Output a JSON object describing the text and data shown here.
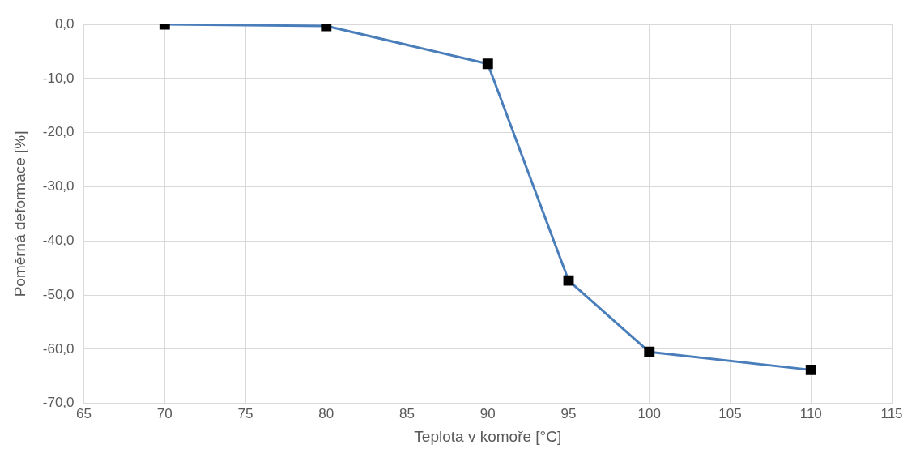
{
  "chart_data": {
    "type": "line",
    "xlabel": "Teplota v komoře [°C]",
    "ylabel": "Poměrná deformace [%]",
    "x": [
      70,
      80,
      90,
      95,
      100,
      110
    ],
    "series": [
      {
        "color": "#4a7ebb",
        "values": [
          0,
          -0.3,
          -7.3,
          -47.3,
          -60.5,
          -63.8
        ]
      }
    ],
    "xlim": [
      65,
      115
    ],
    "xticks": [
      65,
      70,
      75,
      80,
      85,
      90,
      95,
      100,
      105,
      110,
      115
    ],
    "ylim": [
      -70,
      0
    ],
    "yticks": [
      {
        "value": 0,
        "label": "0,0"
      },
      {
        "value": -10,
        "label": "-10,0"
      },
      {
        "value": -20,
        "label": "-20,0"
      },
      {
        "value": -30,
        "label": "-30,0"
      },
      {
        "value": -40,
        "label": "-40,0"
      },
      {
        "value": -50,
        "label": "-50,0"
      },
      {
        "value": -60,
        "label": "-60,0"
      },
      {
        "value": -70,
        "label": "-70,0"
      }
    ],
    "grid": true,
    "legend": false,
    "marker": "square",
    "line_style": "solid"
  }
}
